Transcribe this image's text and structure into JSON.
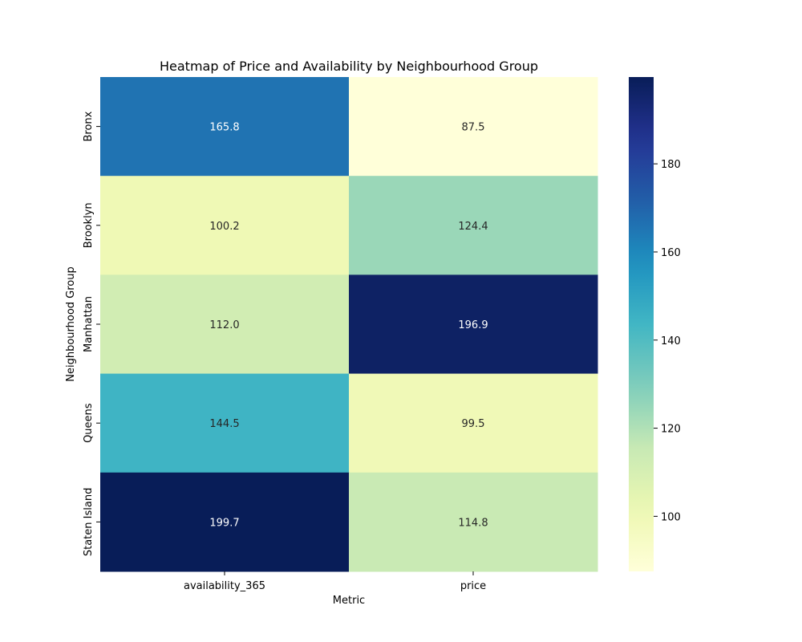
{
  "chart_data": {
    "type": "heatmap",
    "title": "Heatmap of Price and Availability by Neighbourhood Group",
    "xlabel": "Metric",
    "ylabel": "Neighbourhood Group",
    "columns": [
      "availability_365",
      "price"
    ],
    "rows": [
      "Bronx",
      "Brooklyn",
      "Manhattan",
      "Queens",
      "Staten Island"
    ],
    "values": [
      [
        165.8,
        87.5
      ],
      [
        100.2,
        124.4
      ],
      [
        112.0,
        196.9
      ],
      [
        144.5,
        99.5
      ],
      [
        199.7,
        114.8
      ]
    ],
    "value_labels": [
      [
        "165.8",
        "87.5"
      ],
      [
        "100.2",
        "124.4"
      ],
      [
        "112.0",
        "196.9"
      ],
      [
        "144.5",
        "99.5"
      ],
      [
        "199.7",
        "114.8"
      ]
    ],
    "colormap": "YlGnBu",
    "colorbar": {
      "range": [
        87.5,
        199.7
      ],
      "ticks": [
        100,
        120,
        140,
        160,
        180
      ],
      "tick_labels": [
        "100",
        "120",
        "140",
        "160",
        "180"
      ]
    }
  }
}
